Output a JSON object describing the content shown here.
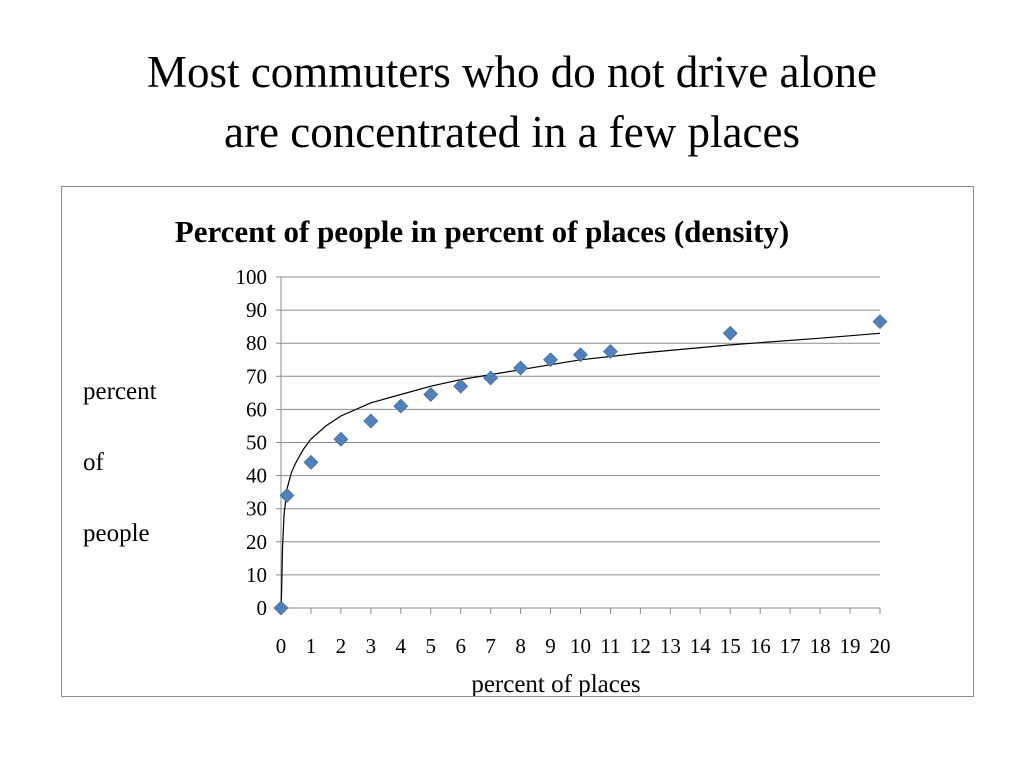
{
  "slide": {
    "title_line1": "Most commuters who do not drive alone",
    "title_line2": "are concentrated in a few places"
  },
  "chart_data": {
    "type": "scatter",
    "title": "Percent of people in percent of places (density)",
    "xlabel": "percent of places",
    "ylabel_lines": [
      "percent",
      "of",
      "people"
    ],
    "xlim": [
      0,
      20
    ],
    "ylim": [
      0,
      100
    ],
    "x_ticks": [
      "0",
      "1",
      "2",
      "3",
      "4",
      "5",
      "6",
      "7",
      "8",
      "9",
      "10",
      "11",
      "12",
      "13",
      "14",
      "15",
      "16",
      "17",
      "18",
      "19",
      "20"
    ],
    "y_ticks": [
      "100",
      "90",
      "80",
      "70",
      "60",
      "50",
      "40",
      "30",
      "20",
      "10",
      "0"
    ],
    "grid": "horizontal",
    "legend": "none",
    "marker": "diamond",
    "marker_color": "#4f81bd",
    "trendline": "logarithmic",
    "series": [
      {
        "points": [
          {
            "x": 0,
            "y": 0
          },
          {
            "x": 0.2,
            "y": 34
          },
          {
            "x": 1,
            "y": 44
          },
          {
            "x": 2,
            "y": 51
          },
          {
            "x": 3,
            "y": 56.5
          },
          {
            "x": 4,
            "y": 61
          },
          {
            "x": 5,
            "y": 64.5
          },
          {
            "x": 6,
            "y": 67
          },
          {
            "x": 7,
            "y": 69.5
          },
          {
            "x": 8,
            "y": 72.5
          },
          {
            "x": 9,
            "y": 75
          },
          {
            "x": 10,
            "y": 76.5
          },
          {
            "x": 11,
            "y": 77.5
          },
          {
            "x": 15,
            "y": 83
          },
          {
            "x": 20,
            "y": 86.5
          }
        ]
      }
    ],
    "trendline_points": [
      {
        "x": 0.02,
        "y": 5
      },
      {
        "x": 0.05,
        "y": 18
      },
      {
        "x": 0.1,
        "y": 28
      },
      {
        "x": 0.2,
        "y": 36
      },
      {
        "x": 0.35,
        "y": 41
      },
      {
        "x": 0.5,
        "y": 44
      },
      {
        "x": 0.75,
        "y": 48
      },
      {
        "x": 1,
        "y": 51
      },
      {
        "x": 1.5,
        "y": 55
      },
      {
        "x": 2,
        "y": 58
      },
      {
        "x": 3,
        "y": 62
      },
      {
        "x": 4,
        "y": 64.5
      },
      {
        "x": 5,
        "y": 67
      },
      {
        "x": 6,
        "y": 69
      },
      {
        "x": 7,
        "y": 70.5
      },
      {
        "x": 8,
        "y": 72
      },
      {
        "x": 9,
        "y": 73.5
      },
      {
        "x": 10,
        "y": 75
      },
      {
        "x": 12,
        "y": 77
      },
      {
        "x": 15,
        "y": 79.5
      },
      {
        "x": 18,
        "y": 81.5
      },
      {
        "x": 20,
        "y": 83
      }
    ]
  }
}
